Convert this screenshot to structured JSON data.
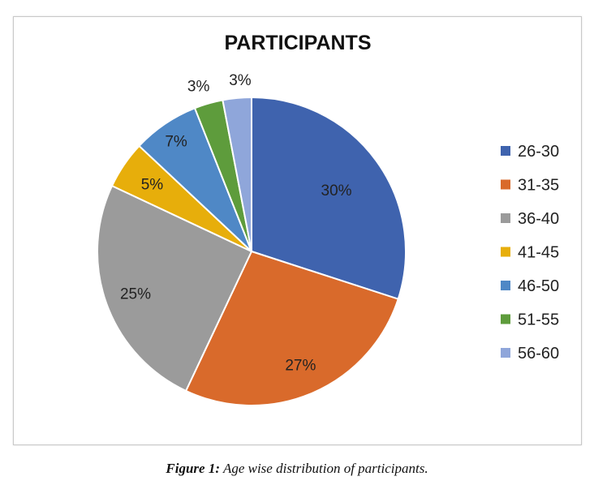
{
  "chart_data": {
    "type": "pie",
    "title": "PARTICIPANTS",
    "categories": [
      "26-30",
      "31-35",
      "36-40",
      "41-45",
      "46-50",
      "51-55",
      "56-60"
    ],
    "values": [
      30,
      27,
      25,
      5,
      7,
      3,
      3
    ],
    "labels": [
      "30%",
      "27%",
      "25%",
      "5%",
      "7%",
      "3%",
      "3%"
    ],
    "colors": [
      "#3f63ae",
      "#d96a2b",
      "#9b9b9b",
      "#e7ae0b",
      "#4f88c6",
      "#5e9c3c",
      "#8fa6da"
    ],
    "start_angle": "12 o'clock",
    "direction": "clockwise",
    "legend_position": "right"
  },
  "caption": {
    "label": "Figure 1:",
    "text": " Age wise distribution of participants."
  }
}
